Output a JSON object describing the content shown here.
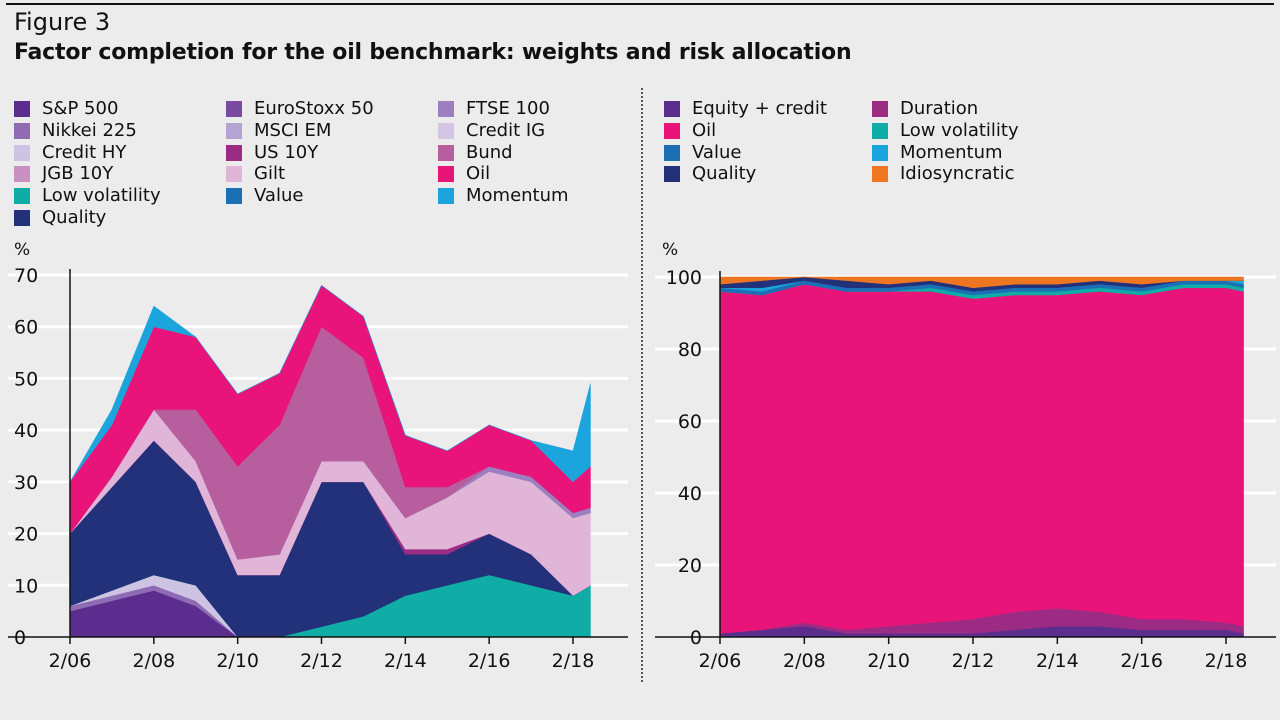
{
  "figure": {
    "label": "Figure 3",
    "title": "Factor completion for the oil benchmark: weights and risk allocation"
  },
  "chart_data": [
    {
      "type": "area",
      "stacked": true,
      "panel": "weights",
      "unit_label": "%",
      "ylim": [
        0,
        70
      ],
      "yticks": [
        0,
        10,
        20,
        30,
        40,
        50,
        60,
        70
      ],
      "xticks": [
        "2/06",
        "2/08",
        "2/10",
        "2/12",
        "2/14",
        "2/16",
        "2/18"
      ],
      "x_dates": [
        "2006-02",
        "2007-02",
        "2008-02",
        "2009-02",
        "2010-02",
        "2011-02",
        "2012-02",
        "2013-02",
        "2014-02",
        "2015-02",
        "2016-02",
        "2017-02",
        "2018-02",
        "2018-07"
      ],
      "series": [
        {
          "name": "S&P 500",
          "color": "#5b2d8e",
          "values": [
            5,
            7,
            9,
            6,
            0,
            0,
            0,
            0,
            0,
            0,
            0,
            0,
            0,
            0
          ]
        },
        {
          "name": "Nikkei 225",
          "color": "#8e6bb3",
          "values": [
            1,
            1,
            1,
            1,
            0,
            0,
            0,
            0,
            0,
            0,
            0,
            0,
            0,
            0
          ]
        },
        {
          "name": "Credit HY",
          "color": "#cfc3e3",
          "values": [
            0,
            1,
            2,
            3,
            0,
            0,
            0,
            0,
            0,
            0,
            0,
            0,
            0,
            0
          ]
        },
        {
          "name": "JGB 10Y",
          "color": "#c98fc0",
          "values": [
            0,
            0,
            0,
            0,
            0,
            0,
            0,
            0,
            0,
            0,
            0,
            0,
            0,
            0
          ]
        },
        {
          "name": "Low volatility",
          "color": "#0fada5",
          "values": [
            0,
            0,
            0,
            0,
            0,
            0,
            2,
            4,
            8,
            10,
            12,
            10,
            8,
            10
          ]
        },
        {
          "name": "Quality",
          "color": "#23307a",
          "values": [
            14,
            20,
            26,
            20,
            12,
            12,
            28,
            26,
            8,
            6,
            8,
            6,
            0,
            0
          ]
        },
        {
          "name": "EuroStoxx 50",
          "color": "#7a4aa0",
          "values": [
            0,
            0,
            0,
            0,
            0,
            0,
            0,
            0,
            0,
            0,
            0,
            0,
            0,
            0
          ]
        },
        {
          "name": "MSCI EM",
          "color": "#b3a4d3",
          "values": [
            0,
            0,
            0,
            0,
            0,
            0,
            0,
            0,
            0,
            0,
            0,
            0,
            0,
            0
          ]
        },
        {
          "name": "US 10Y",
          "color": "#9c2b83",
          "values": [
            0,
            0,
            0,
            0,
            0,
            0,
            0,
            0,
            1,
            1,
            0,
            0,
            0,
            0
          ]
        },
        {
          "name": "Gilt",
          "color": "#e0b5d8",
          "values": [
            0,
            2,
            6,
            4,
            3,
            4,
            4,
            4,
            6,
            10,
            12,
            14,
            15,
            14
          ]
        },
        {
          "name": "Value",
          "color": "#1a6fb5",
          "values": [
            0,
            0,
            0,
            0,
            0,
            0,
            0,
            0,
            0,
            0,
            0,
            0,
            0,
            0
          ]
        },
        {
          "name": "FTSE 100",
          "color": "#9b7fc0",
          "values": [
            0,
            0,
            0,
            0,
            0,
            0,
            0,
            0,
            0,
            0,
            1,
            1,
            1,
            1
          ]
        },
        {
          "name": "Credit IG",
          "color": "#d4c6e2",
          "values": [
            0,
            0,
            0,
            0,
            0,
            0,
            0,
            0,
            0,
            0,
            0,
            0,
            0,
            0
          ]
        },
        {
          "name": "Bund",
          "color": "#b75f9e",
          "values": [
            0,
            0,
            0,
            10,
            18,
            25,
            26,
            20,
            6,
            2,
            0,
            0,
            0,
            0
          ]
        },
        {
          "name": "Oil",
          "color": "#e8147a",
          "values": [
            10,
            10,
            16,
            14,
            14,
            10,
            8,
            8,
            10,
            7,
            8,
            7,
            6,
            8
          ]
        },
        {
          "name": "Momentum",
          "color": "#1ca4dd",
          "values": [
            0,
            3,
            4,
            0,
            0,
            0,
            0,
            0,
            0,
            0,
            0,
            0,
            6,
            16
          ]
        }
      ]
    },
    {
      "type": "area",
      "stacked": true,
      "panel": "risk allocation",
      "unit_label": "%",
      "ylim": [
        0,
        100
      ],
      "yticks": [
        0,
        20,
        40,
        60,
        80,
        100
      ],
      "xticks": [
        "2/06",
        "2/08",
        "2/10",
        "2/12",
        "2/14",
        "2/16",
        "2/18"
      ],
      "x_dates": [
        "2006-02",
        "2007-02",
        "2008-02",
        "2009-02",
        "2010-02",
        "2011-02",
        "2012-02",
        "2013-02",
        "2014-02",
        "2015-02",
        "2016-02",
        "2017-02",
        "2018-02",
        "2018-07"
      ],
      "series": [
        {
          "name": "Equity + credit",
          "color": "#5b2d8e",
          "values": [
            1,
            2,
            3,
            1,
            1,
            1,
            1,
            2,
            3,
            3,
            2,
            2,
            2,
            1
          ]
        },
        {
          "name": "Duration",
          "color": "#9c2b83",
          "values": [
            0,
            0,
            1,
            1,
            2,
            3,
            4,
            5,
            5,
            4,
            3,
            3,
            2,
            2
          ]
        },
        {
          "name": "Oil",
          "color": "#e8147a",
          "values": [
            95,
            93,
            94,
            94,
            93,
            92,
            89,
            88,
            87,
            89,
            90,
            92,
            93,
            93
          ]
        },
        {
          "name": "Low volatility",
          "color": "#0fada5",
          "values": [
            0,
            0,
            0,
            0,
            0,
            1,
            1,
            1,
            1,
            1,
            1,
            1,
            1,
            1
          ]
        },
        {
          "name": "Value",
          "color": "#1a6fb5",
          "values": [
            1,
            1,
            1,
            1,
            1,
            1,
            1,
            1,
            1,
            1,
            1,
            1,
            1,
            1
          ]
        },
        {
          "name": "Momentum",
          "color": "#1ca4dd",
          "values": [
            0,
            1,
            0,
            0,
            0,
            0,
            0,
            0,
            0,
            0,
            0,
            0,
            0,
            1
          ]
        },
        {
          "name": "Quality",
          "color": "#23307a",
          "values": [
            1,
            2,
            1,
            2,
            1,
            1,
            1,
            1,
            1,
            1,
            1,
            0,
            0,
            0
          ]
        },
        {
          "name": "Idiosyncratic",
          "color": "#ee7623",
          "values": [
            2,
            1,
            0,
            1,
            2,
            1,
            3,
            2,
            2,
            1,
            2,
            1,
            1,
            1
          ]
        }
      ]
    }
  ]
}
